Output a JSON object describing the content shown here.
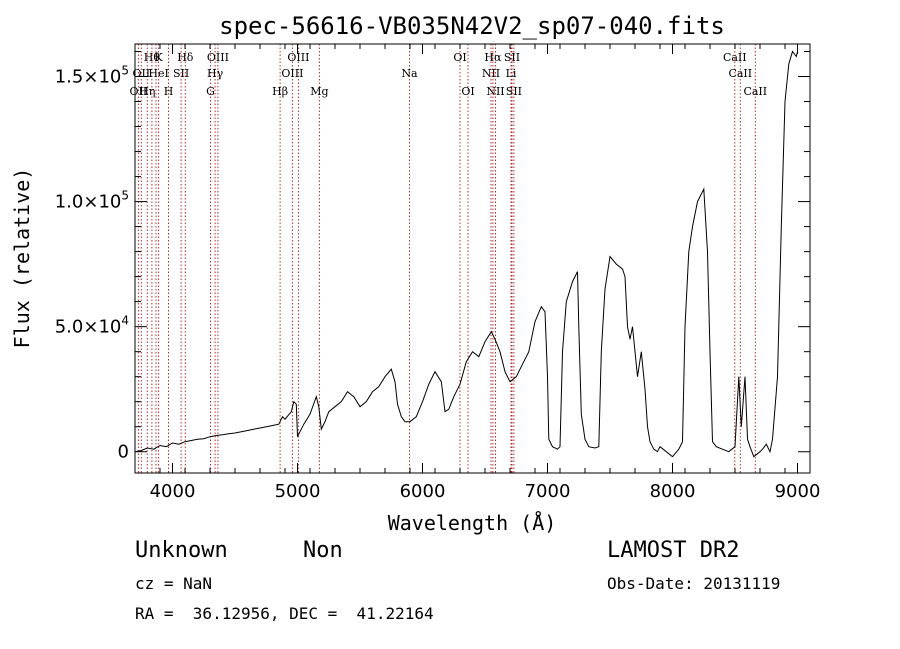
{
  "chart_data": {
    "type": "line",
    "title": "spec-56616-VB035N42V2_sp07-040.fits",
    "xlabel": "Wavelength (Å)",
    "ylabel": "Flux (relative)",
    "xlim": [
      3700,
      9100
    ],
    "ylim": [
      -8500,
      163000
    ],
    "x_ticks": [
      {
        "value": 4000,
        "label": "4000"
      },
      {
        "value": 5000,
        "label": "5000"
      },
      {
        "value": 6000,
        "label": "6000"
      },
      {
        "value": 7000,
        "label": "7000"
      },
      {
        "value": 8000,
        "label": "8000"
      },
      {
        "value": 9000,
        "label": "9000"
      }
    ],
    "y_ticks": [
      {
        "value": 0,
        "mant": "0",
        "exp": ""
      },
      {
        "value": 50000,
        "mant": "5.0×10",
        "exp": "4"
      },
      {
        "value": 100000,
        "mant": "1.0×10",
        "exp": "5"
      },
      {
        "value": 150000,
        "mant": "1.5×10",
        "exp": "5"
      }
    ],
    "line_color": "#000000",
    "marker_color": "#b03030",
    "spectrum": [
      [
        3700,
        0
      ],
      [
        3750,
        500
      ],
      [
        3800,
        1500
      ],
      [
        3850,
        1000
      ],
      [
        3900,
        2500
      ],
      [
        3950,
        2000
      ],
      [
        4000,
        3500
      ],
      [
        4050,
        3000
      ],
      [
        4100,
        4000
      ],
      [
        4150,
        4500
      ],
      [
        4200,
        5000
      ],
      [
        4250,
        5200
      ],
      [
        4300,
        6000
      ],
      [
        4350,
        6500
      ],
      [
        4400,
        6800
      ],
      [
        4450,
        7200
      ],
      [
        4500,
        7500
      ],
      [
        4550,
        8000
      ],
      [
        4600,
        8500
      ],
      [
        4650,
        9000
      ],
      [
        4700,
        9500
      ],
      [
        4750,
        10000
      ],
      [
        4800,
        10500
      ],
      [
        4850,
        11000
      ],
      [
        4880,
        14000
      ],
      [
        4900,
        13000
      ],
      [
        4950,
        16000
      ],
      [
        4970,
        20000
      ],
      [
        4990,
        19000
      ],
      [
        5000,
        6000
      ],
      [
        5020,
        8000
      ],
      [
        5050,
        11000
      ],
      [
        5100,
        15000
      ],
      [
        5150,
        22000
      ],
      [
        5170,
        18000
      ],
      [
        5190,
        9000
      ],
      [
        5220,
        12000
      ],
      [
        5250,
        16000
      ],
      [
        5300,
        18000
      ],
      [
        5350,
        20000
      ],
      [
        5400,
        24000
      ],
      [
        5450,
        22000
      ],
      [
        5500,
        18000
      ],
      [
        5550,
        20000
      ],
      [
        5600,
        24000
      ],
      [
        5650,
        26000
      ],
      [
        5700,
        30000
      ],
      [
        5750,
        33000
      ],
      [
        5780,
        28000
      ],
      [
        5800,
        19000
      ],
      [
        5830,
        14000
      ],
      [
        5860,
        12000
      ],
      [
        5900,
        12000
      ],
      [
        5950,
        14000
      ],
      [
        6000,
        20000
      ],
      [
        6050,
        27000
      ],
      [
        6100,
        32000
      ],
      [
        6150,
        28000
      ],
      [
        6180,
        16000
      ],
      [
        6210,
        17000
      ],
      [
        6250,
        22000
      ],
      [
        6300,
        27000
      ],
      [
        6350,
        36000
      ],
      [
        6400,
        40000
      ],
      [
        6450,
        38000
      ],
      [
        6500,
        44000
      ],
      [
        6550,
        48000
      ],
      [
        6580,
        45000
      ],
      [
        6620,
        40000
      ],
      [
        6660,
        32000
      ],
      [
        6700,
        28000
      ],
      [
        6750,
        30000
      ],
      [
        6800,
        35000
      ],
      [
        6850,
        40000
      ],
      [
        6900,
        52000
      ],
      [
        6950,
        58000
      ],
      [
        6980,
        56000
      ],
      [
        7000,
        30000
      ],
      [
        7010,
        5000
      ],
      [
        7040,
        2000
      ],
      [
        7080,
        1000
      ],
      [
        7100,
        2000
      ],
      [
        7120,
        40000
      ],
      [
        7150,
        60000
      ],
      [
        7200,
        68000
      ],
      [
        7240,
        72000
      ],
      [
        7250,
        50000
      ],
      [
        7270,
        15000
      ],
      [
        7300,
        5000
      ],
      [
        7330,
        2000
      ],
      [
        7380,
        1500
      ],
      [
        7410,
        2000
      ],
      [
        7430,
        40000
      ],
      [
        7460,
        65000
      ],
      [
        7500,
        78000
      ],
      [
        7550,
        75000
      ],
      [
        7600,
        73000
      ],
      [
        7620,
        70000
      ],
      [
        7640,
        50000
      ],
      [
        7660,
        45000
      ],
      [
        7680,
        50000
      ],
      [
        7700,
        40000
      ],
      [
        7720,
        30000
      ],
      [
        7750,
        40000
      ],
      [
        7780,
        25000
      ],
      [
        7800,
        10000
      ],
      [
        7820,
        4000
      ],
      [
        7850,
        1000
      ],
      [
        7880,
        0
      ],
      [
        7900,
        2000
      ],
      [
        7950,
        0
      ],
      [
        8000,
        -2000
      ],
      [
        8050,
        1000
      ],
      [
        8080,
        4000
      ],
      [
        8100,
        50000
      ],
      [
        8130,
        80000
      ],
      [
        8160,
        90000
      ],
      [
        8200,
        100000
      ],
      [
        8250,
        105000
      ],
      [
        8280,
        80000
      ],
      [
        8300,
        40000
      ],
      [
        8320,
        4000
      ],
      [
        8350,
        2000
      ],
      [
        8400,
        1000
      ],
      [
        8450,
        0
      ],
      [
        8500,
        2000
      ],
      [
        8530,
        30000
      ],
      [
        8550,
        10000
      ],
      [
        8580,
        30000
      ],
      [
        8600,
        5000
      ],
      [
        8620,
        2000
      ],
      [
        8650,
        -2000
      ],
      [
        8700,
        0
      ],
      [
        8720,
        1000
      ],
      [
        8750,
        3000
      ],
      [
        8780,
        0
      ],
      [
        8800,
        5000
      ],
      [
        8840,
        30000
      ],
      [
        8870,
        90000
      ],
      [
        8900,
        140000
      ],
      [
        8930,
        155000
      ],
      [
        8960,
        160000
      ],
      [
        8990,
        158000
      ],
      [
        9000,
        160000
      ]
    ],
    "lines_top": [
      {
        "x": 3835,
        "row": 0,
        "label": "Hθ"
      },
      {
        "x": 3889,
        "row": 0,
        "label": "K"
      },
      {
        "x": 4102,
        "row": 0,
        "label": "Hδ"
      },
      {
        "x": 4363,
        "row": 0,
        "label": "OIII"
      },
      {
        "x": 5007,
        "row": 0,
        "label": "OIII"
      },
      {
        "x": 6300,
        "row": 0,
        "label": "OI"
      },
      {
        "x": 6563,
        "row": 0,
        "label": "Hα"
      },
      {
        "x": 6716,
        "row": 0,
        "label": "SII"
      },
      {
        "x": 8498,
        "row": 0,
        "label": "CaII"
      },
      {
        "x": 3750,
        "row": 1,
        "label": "OII"
      },
      {
        "x": 3889,
        "row": 1,
        "label": "HeI"
      },
      {
        "x": 4069,
        "row": 1,
        "label": "SII"
      },
      {
        "x": 4341,
        "row": 1,
        "label": "Hγ"
      },
      {
        "x": 4959,
        "row": 1,
        "label": "OIII"
      },
      {
        "x": 5896,
        "row": 1,
        "label": "Na"
      },
      {
        "x": 6548,
        "row": 1,
        "label": "NII"
      },
      {
        "x": 6708,
        "row": 1,
        "label": "Li"
      },
      {
        "x": 8542,
        "row": 1,
        "label": "CaII"
      },
      {
        "x": 3727,
        "row": 2,
        "label": "OII"
      },
      {
        "x": 3798,
        "row": 2,
        "label": "Hη"
      },
      {
        "x": 3968,
        "row": 2,
        "label": "H"
      },
      {
        "x": 4304,
        "row": 2,
        "label": "G"
      },
      {
        "x": 4861,
        "row": 2,
        "label": "Hβ"
      },
      {
        "x": 5175,
        "row": 2,
        "label": "Mg"
      },
      {
        "x": 6364,
        "row": 2,
        "label": "OI"
      },
      {
        "x": 6584,
        "row": 2,
        "label": "NII"
      },
      {
        "x": 6731,
        "row": 2,
        "label": "SII"
      },
      {
        "x": 8662,
        "row": 2,
        "label": "CaII"
      }
    ],
    "line_markers": [
      3727,
      3750,
      3798,
      3835,
      3868,
      3889,
      3968,
      4069,
      4102,
      4304,
      4341,
      4363,
      4861,
      4959,
      5007,
      5175,
      5896,
      6300,
      6364,
      6548,
      6563,
      6584,
      6708,
      6716,
      6731,
      8498,
      8542,
      8662
    ]
  },
  "info": {
    "class_label": "Unknown",
    "subclass_label": "Non",
    "survey": "LAMOST DR2",
    "cz": "cz = NaN",
    "obs_date": "Obs-Date: 20131119",
    "coords": "RA =  36.12956, DEC =  41.22164"
  }
}
